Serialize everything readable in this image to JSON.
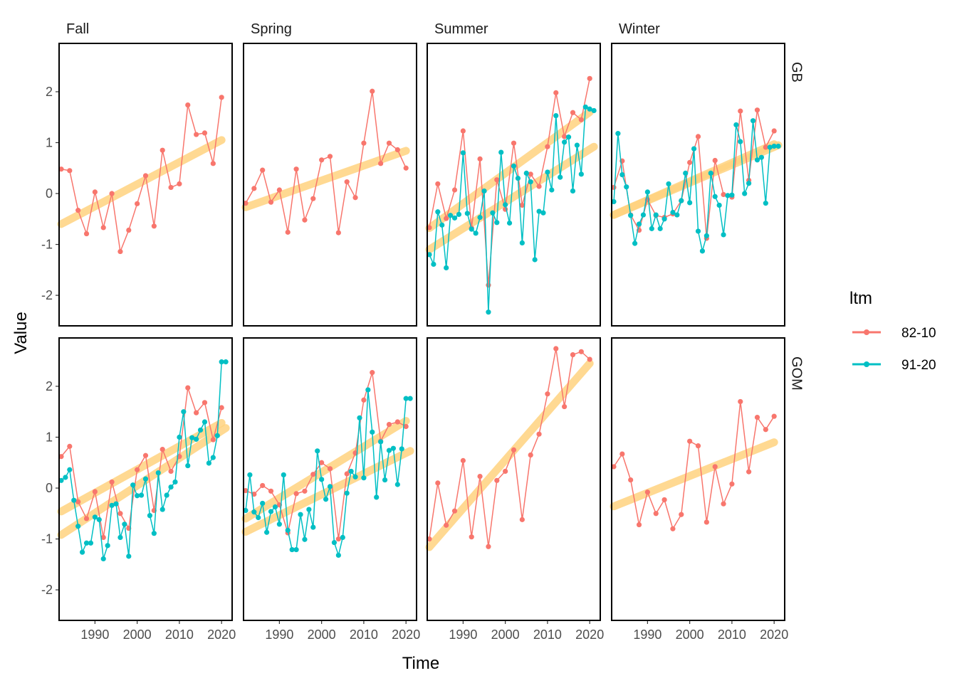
{
  "chart_data": {
    "type": "line",
    "facet_cols": [
      "Fall",
      "Spring",
      "Summer",
      "Winter"
    ],
    "facet_rows": [
      "GB",
      "GOM"
    ],
    "xlabel": "Time",
    "ylabel": "Value",
    "xlim": [
      1981.5,
      2022.5
    ],
    "ylim": [
      -2.6,
      2.95
    ],
    "x_ticks": [
      1990,
      2000,
      2010,
      2020
    ],
    "y_ticks": [
      -2,
      -1,
      0,
      1,
      2
    ],
    "trend_color": "#FFD37F",
    "legend": {
      "title": "ltm",
      "position": "right",
      "entries": [
        {
          "label": "82-10",
          "color": "#F8766D"
        },
        {
          "label": "91-20",
          "color": "#00BFC4"
        }
      ]
    },
    "panels": [
      {
        "col": "Fall",
        "row": "GB",
        "series": [
          {
            "key": "82-10",
            "x": [
              1982,
              1984,
              1986,
              1988,
              1990,
              1992,
              1994,
              1996,
              1998,
              2000,
              2002,
              2004,
              2006,
              2008,
              2010,
              2012,
              2014,
              2016,
              2018,
              2020
            ],
            "y": [
              0.48,
              0.45,
              -0.33,
              -0.79,
              0.03,
              -0.67,
              0.0,
              -1.14,
              -0.72,
              -0.2,
              0.35,
              -0.64,
              0.85,
              0.12,
              0.19,
              1.74,
              1.16,
              1.19,
              0.59,
              1.89
            ],
            "trend": [
              [
                1982,
                -0.6
              ],
              [
                2020,
                1.05
              ]
            ]
          }
        ]
      },
      {
        "col": "Spring",
        "row": "GB",
        "series": [
          {
            "key": "82-10",
            "x": [
              1982,
              1984,
              1986,
              1988,
              1990,
              1992,
              1994,
              1996,
              1998,
              2000,
              2002,
              2004,
              2006,
              2008,
              2010,
              2012,
              2014,
              2016,
              2018,
              2020
            ],
            "y": [
              -0.19,
              0.1,
              0.46,
              -0.17,
              0.07,
              -0.76,
              0.48,
              -0.52,
              -0.1,
              0.66,
              0.73,
              -0.77,
              0.23,
              -0.08,
              0.99,
              2.01,
              0.59,
              0.99,
              0.86,
              0.5
            ],
            "trend": [
              [
                1982,
                -0.27
              ],
              [
                2020,
                0.84
              ]
            ]
          }
        ]
      },
      {
        "col": "Summer",
        "row": "GB",
        "series": [
          {
            "key": "82-10",
            "x": [
              1982,
              1984,
              1986,
              1988,
              1990,
              1992,
              1994,
              1996,
              1998,
              2000,
              2002,
              2004,
              2006,
              2008,
              2010,
              2012,
              2014,
              2016,
              2018,
              2020
            ],
            "y": [
              -0.67,
              0.19,
              -0.49,
              0.07,
              1.23,
              -0.68,
              0.68,
              -1.8,
              0.27,
              -0.31,
              0.99,
              -0.23,
              0.38,
              0.14,
              0.92,
              1.98,
              1.12,
              1.59,
              1.45,
              2.26
            ],
            "trend": [
              [
                1982,
                -0.68
              ],
              [
                2020,
                1.6
              ]
            ]
          },
          {
            "key": "91-20",
            "x": [
              1982,
              1983,
              1984,
              1985,
              1986,
              1987,
              1988,
              1989,
              1990,
              1991,
              1992,
              1993,
              1994,
              1995,
              1996,
              1997,
              1998,
              1999,
              2000,
              2001,
              2002,
              2003,
              2004,
              2005,
              2006,
              2007,
              2008,
              2009,
              2010,
              2011,
              2012,
              2013,
              2014,
              2015,
              2016,
              2017,
              2018,
              2019,
              2020,
              2021
            ],
            "y": [
              -1.2,
              -1.39,
              -0.36,
              -0.62,
              -1.46,
              -0.43,
              -0.48,
              -0.41,
              0.8,
              -0.39,
              -0.7,
              -0.78,
              -0.47,
              0.05,
              -2.33,
              -0.38,
              -0.57,
              0.81,
              -0.22,
              -0.58,
              0.54,
              0.3,
              -0.97,
              0.4,
              0.23,
              -1.3,
              -0.35,
              -0.38,
              0.42,
              0.07,
              1.53,
              0.32,
              1.01,
              1.11,
              0.05,
              0.95,
              0.38,
              1.7,
              1.66,
              1.63
            ],
            "trend": [
              [
                1982,
                -1.1
              ],
              [
                2021,
                0.92
              ]
            ]
          }
        ]
      },
      {
        "col": "Winter",
        "row": "GB",
        "series": [
          {
            "key": "82-10",
            "x": [
              1982,
              1984,
              1986,
              1988,
              1990,
              1992,
              1994,
              1996,
              1998,
              2000,
              2002,
              2004,
              2006,
              2008,
              2010,
              2012,
              2014,
              2016,
              2018,
              2020
            ],
            "y": [
              0.12,
              0.64,
              -0.42,
              -0.72,
              -0.12,
              -0.43,
              -0.47,
              -0.4,
              -0.14,
              0.61,
              1.12,
              -0.88,
              0.65,
              -0.02,
              -0.07,
              1.62,
              0.26,
              1.64,
              0.91,
              1.23
            ],
            "trend": [
              [
                1982,
                -0.42
              ],
              [
                2020,
                0.97
              ]
            ]
          },
          {
            "key": "91-20",
            "x": [
              1982,
              1983,
              1984,
              1985,
              1986,
              1987,
              1988,
              1989,
              1990,
              1991,
              1992,
              1993,
              1994,
              1995,
              1996,
              1997,
              1998,
              1999,
              2000,
              2001,
              2002,
              2003,
              2004,
              2005,
              2006,
              2007,
              2008,
              2009,
              2010,
              2011,
              2012,
              2013,
              2014,
              2015,
              2016,
              2017,
              2018,
              2019,
              2020,
              2021
            ],
            "y": [
              -0.16,
              1.18,
              0.37,
              0.13,
              -0.43,
              -0.98,
              -0.6,
              -0.42,
              0.03,
              -0.69,
              -0.42,
              -0.69,
              -0.5,
              0.19,
              -0.37,
              -0.42,
              -0.14,
              0.4,
              -0.18,
              0.88,
              -0.74,
              -1.13,
              -0.83,
              0.4,
              -0.06,
              -0.23,
              -0.81,
              -0.04,
              -0.03,
              1.35,
              1.02,
              -0.0,
              0.2,
              1.43,
              0.66,
              0.71,
              -0.19,
              0.91,
              0.93,
              0.93
            ],
            "trend": [
              [
                1982,
                -0.42
              ],
              [
                2021,
                0.95
              ]
            ]
          }
        ]
      },
      {
        "col": "Fall",
        "row": "GOM",
        "series": [
          {
            "key": "82-10",
            "x": [
              1982,
              1984,
              1986,
              1988,
              1990,
              1992,
              1994,
              1996,
              1998,
              2000,
              2002,
              2004,
              2006,
              2008,
              2010,
              2012,
              2014,
              2016,
              2018,
              2020
            ],
            "y": [
              0.62,
              0.82,
              -0.27,
              -0.6,
              -0.07,
              -0.97,
              0.12,
              -0.5,
              -0.79,
              0.36,
              0.64,
              -0.44,
              0.76,
              0.33,
              0.62,
              1.97,
              1.48,
              1.68,
              0.95,
              1.58
            ],
            "trend": [
              [
                1982,
                -0.46
              ],
              [
                2020,
                1.28
              ]
            ]
          },
          {
            "key": "91-20",
            "x": [
              1982,
              1983,
              1984,
              1985,
              1986,
              1987,
              1988,
              1989,
              1990,
              1991,
              1992,
              1993,
              1994,
              1995,
              1996,
              1997,
              1998,
              1999,
              2000,
              2001,
              2002,
              2003,
              2004,
              2005,
              2006,
              2007,
              2008,
              2009,
              2010,
              2011,
              2012,
              2013,
              2014,
              2015,
              2016,
              2017,
              2018,
              2019,
              2020,
              2021
            ],
            "y": [
              0.15,
              0.21,
              0.36,
              -0.24,
              -0.75,
              -1.26,
              -1.08,
              -1.08,
              -0.57,
              -0.62,
              -1.39,
              -1.13,
              -0.34,
              -0.31,
              -0.97,
              -0.71,
              -1.34,
              0.06,
              -0.15,
              -0.14,
              0.18,
              -0.54,
              -0.89,
              0.3,
              -0.42,
              -0.14,
              0.02,
              0.12,
              1.0,
              1.5,
              0.44,
              0.99,
              0.96,
              1.14,
              1.3,
              0.49,
              0.6,
              1.03,
              2.48,
              2.48
            ],
            "trend": [
              [
                1982,
                -0.92
              ],
              [
                2021,
                1.18
              ]
            ]
          }
        ]
      },
      {
        "col": "Spring",
        "row": "GOM",
        "series": [
          {
            "key": "82-10",
            "x": [
              1982,
              1984,
              1986,
              1988,
              1990,
              1992,
              1994,
              1996,
              1998,
              2000,
              2002,
              2004,
              2006,
              2008,
              2010,
              2012,
              2014,
              2016,
              2018,
              2020
            ],
            "y": [
              -0.05,
              -0.12,
              0.05,
              -0.06,
              -0.33,
              -0.88,
              -0.11,
              -0.06,
              0.27,
              0.5,
              0.38,
              -1.0,
              0.28,
              0.69,
              1.73,
              2.27,
              0.92,
              1.25,
              1.3,
              1.21
            ],
            "trend": [
              [
                1982,
                -0.6
              ],
              [
                2020,
                1.32
              ]
            ]
          },
          {
            "key": "91-20",
            "x": [
              1982,
              1983,
              1984,
              1985,
              1986,
              1987,
              1988,
              1989,
              1990,
              1991,
              1992,
              1993,
              1994,
              1995,
              1996,
              1997,
              1998,
              1999,
              2000,
              2001,
              2002,
              2003,
              2004,
              2005,
              2006,
              2007,
              2008,
              2009,
              2010,
              2011,
              2012,
              2013,
              2014,
              2015,
              2016,
              2017,
              2018,
              2019,
              2020,
              2021
            ],
            "y": [
              -0.44,
              0.26,
              -0.47,
              -0.58,
              -0.3,
              -0.87,
              -0.46,
              -0.37,
              -0.71,
              0.26,
              -0.83,
              -1.21,
              -1.21,
              -0.52,
              -1.01,
              -0.42,
              -0.77,
              0.73,
              0.17,
              -0.22,
              0.03,
              -1.07,
              -1.32,
              -0.97,
              -0.1,
              0.33,
              0.22,
              1.38,
              0.2,
              1.93,
              1.1,
              -0.18,
              0.91,
              0.16,
              0.74,
              0.78,
              0.07,
              0.77,
              1.76,
              1.76
            ],
            "trend": [
              [
                1982,
                -0.86
              ],
              [
                2021,
                0.73
              ]
            ]
          }
        ]
      },
      {
        "col": "Summer",
        "row": "GOM",
        "series": [
          {
            "key": "82-10",
            "x": [
              1982,
              1984,
              1986,
              1988,
              1990,
              1992,
              1994,
              1996,
              1998,
              2000,
              2002,
              2004,
              2006,
              2008,
              2010,
              2012,
              2014,
              2016,
              2018,
              2020
            ],
            "y": [
              -1.0,
              0.1,
              -0.73,
              -0.45,
              0.54,
              -0.96,
              0.23,
              -1.15,
              0.15,
              0.33,
              0.75,
              -0.62,
              0.65,
              1.06,
              1.85,
              2.74,
              1.6,
              2.62,
              2.68,
              2.53
            ],
            "trend": [
              [
                1982,
                -1.16
              ],
              [
                2020,
                2.45
              ]
            ]
          }
        ]
      },
      {
        "col": "Winter",
        "row": "GOM",
        "series": [
          {
            "key": "82-10",
            "x": [
              1982,
              1984,
              1986,
              1988,
              1990,
              1992,
              1994,
              1996,
              1998,
              2000,
              2002,
              2004,
              2006,
              2008,
              2010,
              2012,
              2014,
              2016,
              2018,
              2020
            ],
            "y": [
              0.42,
              0.67,
              0.16,
              -0.72,
              -0.08,
              -0.5,
              -0.23,
              -0.8,
              -0.52,
              0.92,
              0.83,
              -0.67,
              0.42,
              -0.31,
              0.08,
              1.7,
              0.32,
              1.39,
              1.15,
              1.41
            ],
            "trend": [
              [
                1982,
                -0.36
              ],
              [
                2020,
                0.9
              ]
            ]
          }
        ]
      }
    ]
  }
}
